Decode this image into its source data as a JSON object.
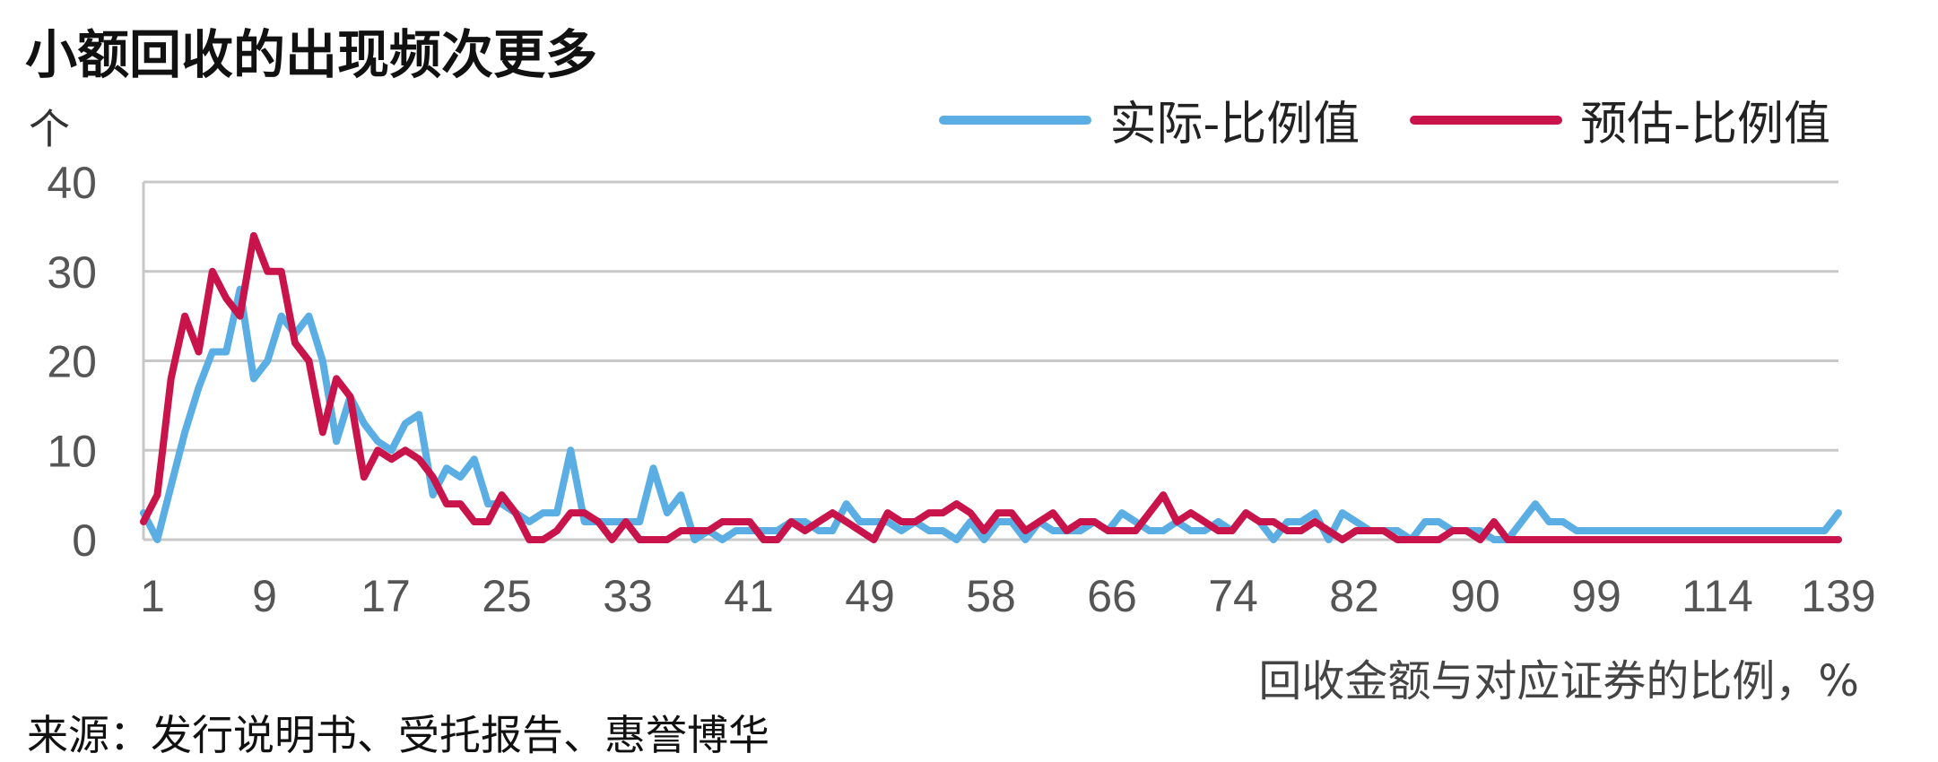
{
  "title": "小额回收的出现频次更多",
  "unit_label": "个",
  "x_axis_label": "回收金额与对应证券的比例，%",
  "source": "来源：发行说明书、受托报告、惠誉博华",
  "colors": {
    "actual": "#5aaee3",
    "estimate": "#c8144a",
    "grid": "#c8c8c8"
  },
  "chart_data": {
    "type": "line",
    "title": "小额回收的出现频次更多",
    "xlabel": "回收金额与对应证券的比例，%",
    "ylabel": "个",
    "ylim": [
      0,
      40
    ],
    "yticks": [
      0,
      10,
      20,
      30,
      40
    ],
    "grid": true,
    "legend_position": "top-right",
    "x_tick_labels": [
      "1",
      "9",
      "17",
      "25",
      "33",
      "41",
      "49",
      "58",
      "66",
      "74",
      "82",
      "90",
      "99",
      "114",
      "139"
    ],
    "series": [
      {
        "name": "实际-比例值",
        "color": "#5aaee3",
        "values": [
          3,
          0,
          6,
          12,
          17,
          21,
          21,
          28,
          18,
          20,
          25,
          23,
          25,
          20,
          11,
          16,
          13,
          11,
          10,
          13,
          14,
          5,
          8,
          7,
          9,
          4,
          4,
          3,
          2,
          3,
          3,
          10,
          2,
          2,
          2,
          2,
          2,
          8,
          3,
          5,
          0,
          1,
          0,
          1,
          1,
          1,
          1,
          2,
          2,
          1,
          1,
          4,
          2,
          2,
          2,
          1,
          2,
          1,
          1,
          0,
          2,
          0,
          2,
          2,
          0,
          2,
          1,
          1,
          1,
          2,
          1,
          3,
          2,
          1,
          1,
          2,
          1,
          1,
          2,
          1,
          3,
          2,
          0,
          2,
          2,
          3,
          0,
          3,
          2,
          1,
          1,
          1,
          0,
          2,
          2,
          1,
          1,
          1,
          0,
          0,
          2,
          4,
          2,
          2,
          1,
          1,
          1,
          1,
          1,
          1,
          1,
          1,
          1,
          1,
          1,
          1,
          1,
          1,
          1,
          1,
          1,
          1,
          1,
          3
        ]
      },
      {
        "name": "预估-比例值",
        "color": "#c8144a",
        "values": [
          2,
          5,
          18,
          25,
          21,
          30,
          27,
          25,
          34,
          30,
          30,
          22,
          20,
          12,
          18,
          16,
          7,
          10,
          9,
          10,
          9,
          7,
          4,
          4,
          2,
          2,
          5,
          3,
          0,
          0,
          1,
          3,
          3,
          2,
          0,
          2,
          0,
          0,
          0,
          1,
          1,
          1,
          2,
          2,
          2,
          0,
          0,
          2,
          1,
          2,
          3,
          2,
          1,
          0,
          3,
          2,
          2,
          3,
          3,
          4,
          3,
          1,
          3,
          3,
          1,
          2,
          3,
          1,
          2,
          2,
          1,
          1,
          1,
          3,
          5,
          2,
          3,
          2,
          1,
          1,
          3,
          2,
          2,
          1,
          1,
          2,
          1,
          0,
          1,
          1,
          1,
          0,
          0,
          0,
          0,
          1,
          1,
          0,
          2,
          0,
          0,
          0,
          0,
          0,
          0,
          0,
          0,
          0,
          0,
          0,
          0,
          0,
          0,
          0,
          0,
          0,
          0,
          0,
          0,
          0,
          0,
          0,
          0,
          0
        ]
      }
    ]
  }
}
